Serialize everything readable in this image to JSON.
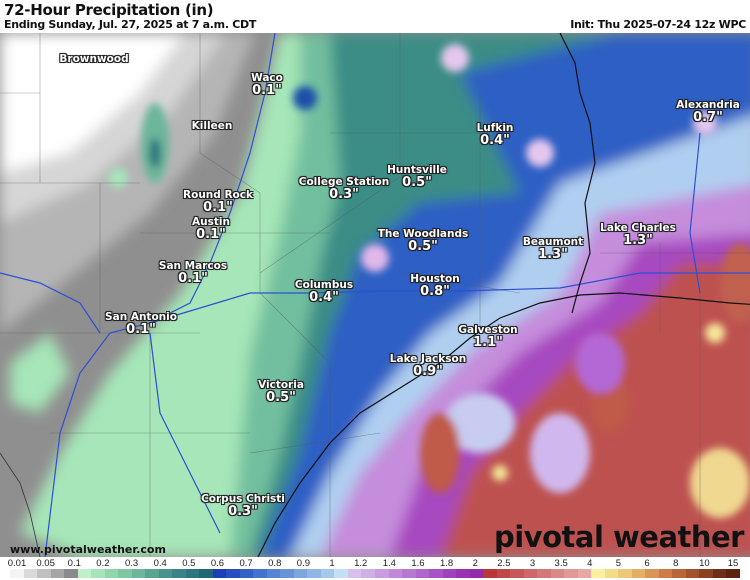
{
  "header": {
    "title": "72-Hour Precipitation (in)",
    "subtitle": "Ending Sunday, Jul. 27, 2025 at 7 a.m. CDT",
    "init": "Init: Thu 2025-07-24 12z WPC"
  },
  "cities": [
    {
      "name": "Brownwood",
      "value": ""
    },
    {
      "name": "Waco",
      "value": "0.1\""
    },
    {
      "name": "Killeen",
      "value": ""
    },
    {
      "name": "Lufkin",
      "value": "0.4\""
    },
    {
      "name": "Alexandria",
      "value": "0.7\""
    },
    {
      "name": "Huntsville",
      "value": "0.5\""
    },
    {
      "name": "College Station",
      "value": "0.3\""
    },
    {
      "name": "Round Rock",
      "value": "0.1\""
    },
    {
      "name": "Austin",
      "value": "0.1\""
    },
    {
      "name": "The Woodlands",
      "value": "0.5\""
    },
    {
      "name": "Beaumont",
      "value": "1.3\""
    },
    {
      "name": "Lake Charles",
      "value": "1.3\""
    },
    {
      "name": "San Marcos",
      "value": "0.1\""
    },
    {
      "name": "Houston",
      "value": "0.8\""
    },
    {
      "name": "Columbus",
      "value": "0.4\""
    },
    {
      "name": "San Antonio",
      "value": "0.1\""
    },
    {
      "name": "Galveston",
      "value": "1.1\""
    },
    {
      "name": "Lake Jackson",
      "value": "0.9\""
    },
    {
      "name": "Victoria",
      "value": "0.5\""
    },
    {
      "name": "Corpus Christi",
      "value": "0.3\""
    }
  ],
  "footer": {
    "url": "www.pivotalweather.com",
    "logo": "pivotal weather"
  },
  "legend": {
    "labels": [
      "0.01",
      "0.05",
      "0.1",
      "0.2",
      "0.3",
      "0.4",
      "0.5",
      "0.6",
      "0.7",
      "0.8",
      "0.9",
      "1",
      "1.2",
      "1.4",
      "1.6",
      "1.8",
      "2",
      "2.5",
      "3",
      "3.5",
      "4",
      "5",
      "6",
      "8",
      "10",
      "15"
    ],
    "colors": [
      "#f4f4f4",
      "#d9d9d9",
      "#c0c0c0",
      "#a6a6a6",
      "#8a8a8a",
      "#bff0c8",
      "#a8e4bb",
      "#92d6ae",
      "#7ec7a2",
      "#6cb69a",
      "#5aa494",
      "#49928e",
      "#3a8487",
      "#2c7680",
      "#1f6878",
      "#1c3fb8",
      "#2650c0",
      "#3461c6",
      "#4472cc",
      "#5683d2",
      "#6894d8",
      "#7ba6de",
      "#90b7e3",
      "#a6c9ea",
      "#c4e0f4",
      "#d8c0ec",
      "#d0aee6",
      "#c89ce0",
      "#c08ad9",
      "#b878d2",
      "#b066cc",
      "#a854c4",
      "#a042bc",
      "#9a32b4",
      "#922aaa",
      "#b8383a",
      "#bf4848",
      "#c65858",
      "#cc6868",
      "#d37878",
      "#da8888",
      "#e19898",
      "#e8a8a6",
      "#fbf0a0",
      "#f5dc8a",
      "#eec878",
      "#e4b066",
      "#d89656",
      "#cc7c46",
      "#b86638",
      "#a2522c",
      "#8a4022",
      "#6e2f18",
      "#5a2410"
    ]
  },
  "colors": {
    "river": "#2d4fd6",
    "border": "#222222"
  }
}
